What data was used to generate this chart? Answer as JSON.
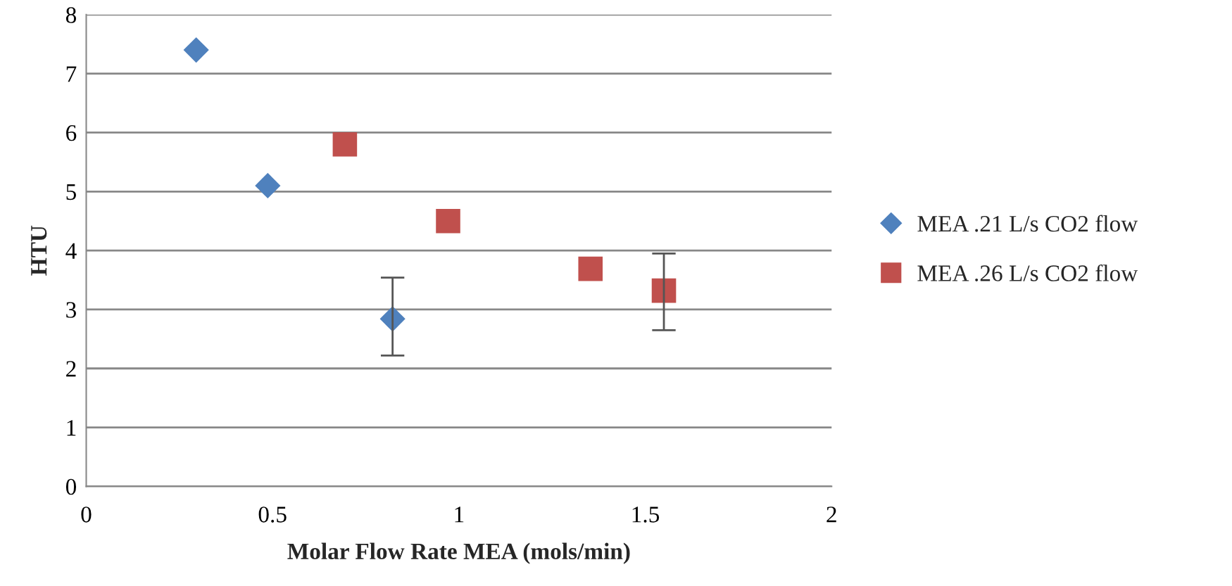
{
  "chart_data": {
    "type": "scatter",
    "xlabel": "Molar Flow Rate MEA (mols/min)",
    "ylabel": "HTU",
    "xlim": [
      0,
      2
    ],
    "xticks": [
      0,
      0.5,
      1,
      1.5,
      2
    ],
    "ylim": [
      0,
      8
    ],
    "yticks": [
      0,
      1,
      2,
      3,
      4,
      5,
      6,
      7,
      8
    ],
    "grid": "y",
    "legend": "right",
    "series": [
      {
        "name": "MEA .21 L/s CO2 flow",
        "color": "#4f81bd",
        "marker": "diamond",
        "x": [
          0.295,
          0.487,
          0.822
        ],
        "values": [
          7.4,
          5.1,
          2.84
        ],
        "errors": [
          null,
          null,
          [
            2.22,
            3.54
          ]
        ]
      },
      {
        "name": "MEA .26 L/s CO2 flow",
        "color": "#c0504d",
        "marker": "square",
        "x": [
          0.694,
          0.971,
          1.353,
          1.55
        ],
        "values": [
          5.8,
          4.5,
          3.69,
          3.32
        ],
        "errors": [
          null,
          null,
          null,
          [
            2.65,
            3.95
          ]
        ]
      }
    ]
  }
}
